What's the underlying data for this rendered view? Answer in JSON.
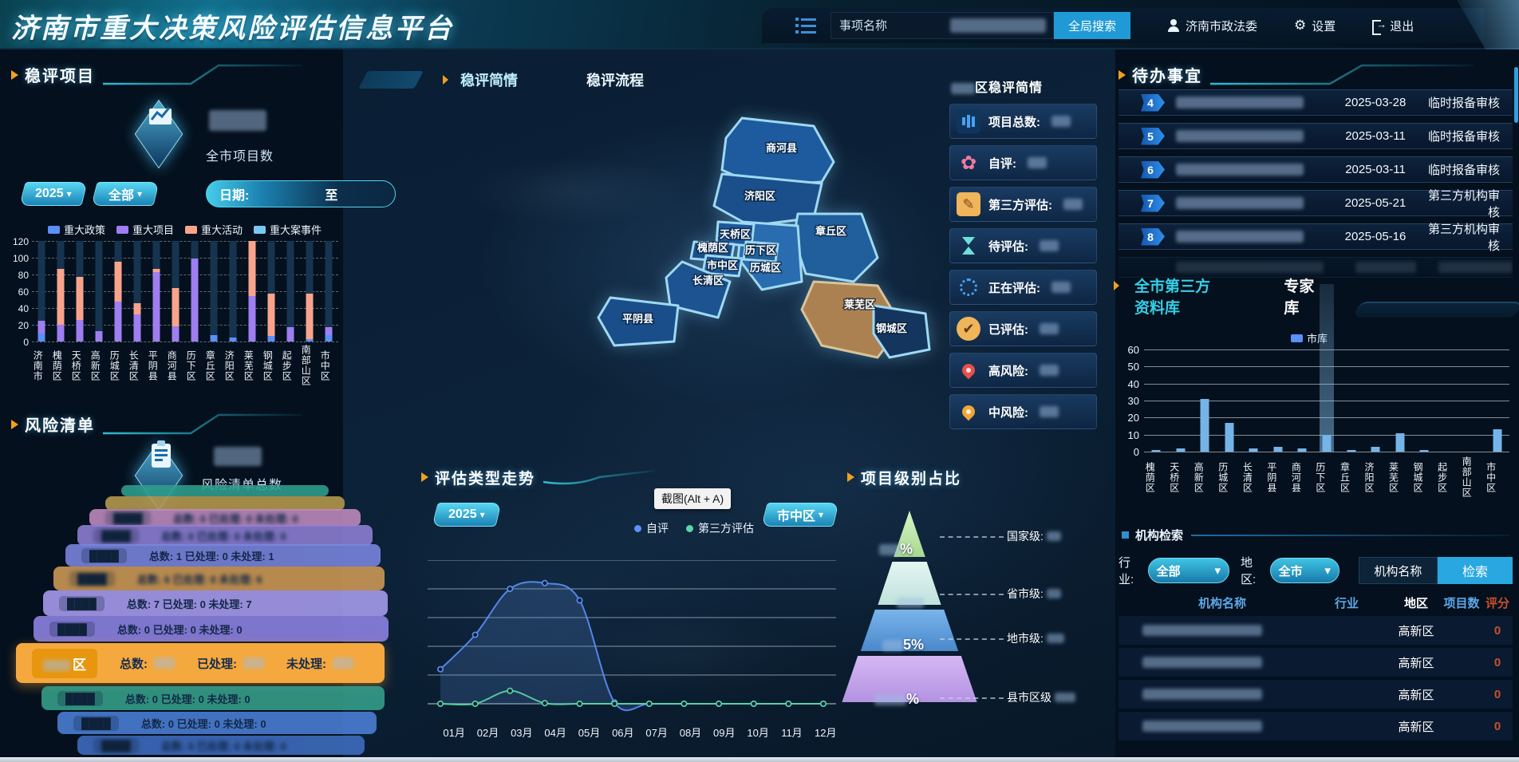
{
  "header": {
    "title": "济南市重大决策风险评估信息平台",
    "search_placeholder": "事项名称",
    "search_button": "全局搜索",
    "user": "济南市政法委",
    "settings": "设置",
    "logout": "退出"
  },
  "tooltip": "截图(Alt + A)",
  "panels": {
    "stable_projects": {
      "title": "稳评项目",
      "total_label": "全市项目数",
      "year": "2025",
      "scope": "全部",
      "date_label": "日期:",
      "to_label": "至",
      "chart": {
        "type": "bar",
        "stacked": true,
        "ymax": 120,
        "y_ticks": [
          0,
          20,
          40,
          60,
          80,
          100,
          120
        ],
        "categories": [
          "济南市",
          "槐荫区",
          "天桥区",
          "高新区",
          "历城区",
          "长清区",
          "平阴县",
          "商河县",
          "历下区",
          "章丘区",
          "济阳区",
          "莱芜区",
          "钢城区",
          "起步区",
          "南部山区",
          "市中区"
        ],
        "series": [
          {
            "name": "重大政策",
            "color": "#5b8ff9",
            "values": [
              10,
              0,
              0,
              0,
              0,
              0,
              0,
              0,
              0,
              8,
              5,
              0,
              7,
              0,
              3,
              8
            ]
          },
          {
            "name": "重大项目",
            "color": "#9e7ef0",
            "values": [
              15,
              20,
              26,
              12,
              48,
              32,
              83,
              18,
              99,
              0,
              0,
              54,
              0,
              17,
              0,
              9
            ]
          },
          {
            "name": "重大活动",
            "color": "#f8a48c",
            "values": [
              0,
              67,
              51,
              0,
              47,
              14,
              4,
              46,
              0,
              0,
              0,
              66,
              50,
              0,
              54,
              0
            ]
          },
          {
            "name": "重大案事件",
            "color": "#79c8f2",
            "values": [
              0,
              0,
              0,
              0,
              0,
              0,
              0,
              0,
              0,
              0,
              0,
              0,
              0,
              0,
              0,
              0
            ]
          }
        ]
      }
    },
    "risk_list": {
      "title": "风险清单",
      "total_label": "风险清单总数",
      "focus_labels": [
        "总数:",
        "已处理:",
        "未处理:"
      ],
      "rows": [
        {
          "name": "",
          "stats": "",
          "color": "#2f9e8e",
          "blur": true
        },
        {
          "name": "",
          "stats": "",
          "color": "#b79a4e",
          "blur": true
        },
        {
          "name": "████",
          "stats": "总数: 0 已处理: 0 未处理: 0",
          "color": "#c08cc0",
          "blur": true
        },
        {
          "name": "████",
          "stats": "总数: 0 已处理: 0 未处理: 0",
          "color": "#8f7fd6",
          "blur": true
        },
        {
          "name": "████",
          "stats": "总数: 1 已处理: 0 未处理: 1",
          "color": "#7b86e0",
          "blur": false
        },
        {
          "name": "████",
          "stats": "总数: 6 已处理: 0 未处理: 6",
          "color": "#cf9a55",
          "blur": true
        },
        {
          "name": "████",
          "stats": "总数: 7 已处理: 0 未处理: 7",
          "color": "#a99df0",
          "blur": false
        },
        {
          "name": "████",
          "stats": "总数: 0 已处理: 0 未处理: 0",
          "color": "#8f83e6",
          "blur": false
        },
        {
          "name": "区",
          "stats": "",
          "color": "#f5a83d",
          "focus": true,
          "blur": false
        },
        {
          "name": "████",
          "stats": "总数: 0 已处理: 0 未处理: 0",
          "color": "#35a08a",
          "blur": false
        },
        {
          "name": "████",
          "stats": "总数: 0 已处理: 0 未处理: 0",
          "color": "#4b7fd6",
          "blur": false
        },
        {
          "name": "████",
          "stats": "总数: 0 已处理: 0 未处理: 0",
          "color": "#3f6dc0",
          "blur": true
        }
      ]
    },
    "map": {
      "tabs": [
        "稳评简情",
        "稳评流程"
      ],
      "labels": [
        "商河县",
        "济阳区",
        "天桥区",
        "章丘区",
        "槐荫区",
        "历下区",
        "市中区",
        "历城区",
        "长清区",
        "莱芜区",
        "平阴县",
        "钢城区"
      ]
    },
    "brief": {
      "title_suffix": "区稳评简情",
      "items": [
        {
          "icon": "bar-chart-icon",
          "label": "项目总数:"
        },
        {
          "icon": "flower-icon",
          "label": "自评:"
        },
        {
          "icon": "doc-pen-icon",
          "label": "第三方评估:"
        },
        {
          "icon": "hourglass-icon",
          "label": "待评估:"
        },
        {
          "icon": "spinner-icon",
          "label": "正在评估:"
        },
        {
          "icon": "check-icon",
          "label": "已评估:"
        },
        {
          "icon": "pin-red-icon",
          "label": "高风险:"
        },
        {
          "icon": "pin-yellow-icon",
          "label": "中风险:"
        }
      ]
    },
    "trend": {
      "title": "评估类型走势",
      "year": "2025",
      "chart": {
        "type": "line",
        "x": [
          "01月",
          "02月",
          "03月",
          "04月",
          "05月",
          "06月",
          "07月",
          "08月",
          "09月",
          "10月",
          "11月",
          "12月"
        ],
        "ylim": [
          0,
          5
        ],
        "series": [
          {
            "name": "自评",
            "color": "#5b8ff9",
            "values": [
              1.2,
              2.4,
              4.0,
              4.2,
              3.6,
              0.05,
              0,
              0,
              0,
              0,
              0,
              0
            ]
          },
          {
            "name": "第三方评估",
            "color": "#5ad8a6",
            "values": [
              0,
              0,
              0.45,
              0.02,
              0,
              0,
              0,
              0,
              0,
              0,
              0,
              0
            ]
          }
        ]
      }
    },
    "pyramid": {
      "title": "项目级别占比",
      "region": "市中区",
      "levels": [
        {
          "label": "国家级:",
          "color": "#bfe8a8",
          "pct_suffix": "%"
        },
        {
          "label": "省市级:",
          "color": "#d6f0ec",
          "pct_suffix": ""
        },
        {
          "label": "地市级:",
          "color": "#5d9fe0",
          "pct_suffix": "5%"
        },
        {
          "label": "县市区级",
          "color": "#c7a6ef",
          "pct_suffix": "%"
        }
      ]
    },
    "todo": {
      "title": "待办事宜",
      "rows": [
        {
          "num": "4",
          "date": "2025-03-28",
          "status": "临时报备审核"
        },
        {
          "num": "5",
          "date": "2025-03-11",
          "status": "临时报备审核"
        },
        {
          "num": "6",
          "date": "2025-03-11",
          "status": "临时报备审核"
        },
        {
          "num": "7",
          "date": "2025-05-21",
          "status": "第三方机构审核"
        },
        {
          "num": "8",
          "date": "2025-05-16",
          "status": "第三方机构审核"
        }
      ]
    },
    "library": {
      "tabs": [
        "全市第三方资料库",
        "专家库"
      ],
      "legend": "市库",
      "legend_color": "#5b8ff9",
      "chart": {
        "type": "bar",
        "ymax": 60,
        "y_ticks": [
          0,
          10,
          20,
          30,
          40,
          50,
          60
        ],
        "categories": [
          "槐荫区",
          "天桥区",
          "高新区",
          "历城区",
          "长清区",
          "平阴县",
          "商河县",
          "历下区",
          "章丘区",
          "济阳区",
          "莱芜区",
          "钢城区",
          "起步区",
          "南部山区",
          "市中区"
        ],
        "values": [
          1,
          2,
          31,
          17,
          2,
          3,
          2,
          10,
          1,
          3,
          11,
          1,
          0,
          0,
          13
        ],
        "highlight_index": 7
      }
    },
    "org_search": {
      "label": "机构检索",
      "industry_label": "行业:",
      "industry_value": "全部",
      "region_label": "地区:",
      "region_value": "全市",
      "name_input": "机构名称",
      "search_button": "检索",
      "headers": [
        "机构名称",
        "行业",
        "地区",
        "项目数",
        "评分"
      ],
      "rows": [
        {
          "region": "高新区",
          "score": "0"
        },
        {
          "region": "高新区",
          "score": "0"
        },
        {
          "region": "高新区",
          "score": "0"
        },
        {
          "region": "高新区",
          "score": "0"
        }
      ]
    }
  }
}
